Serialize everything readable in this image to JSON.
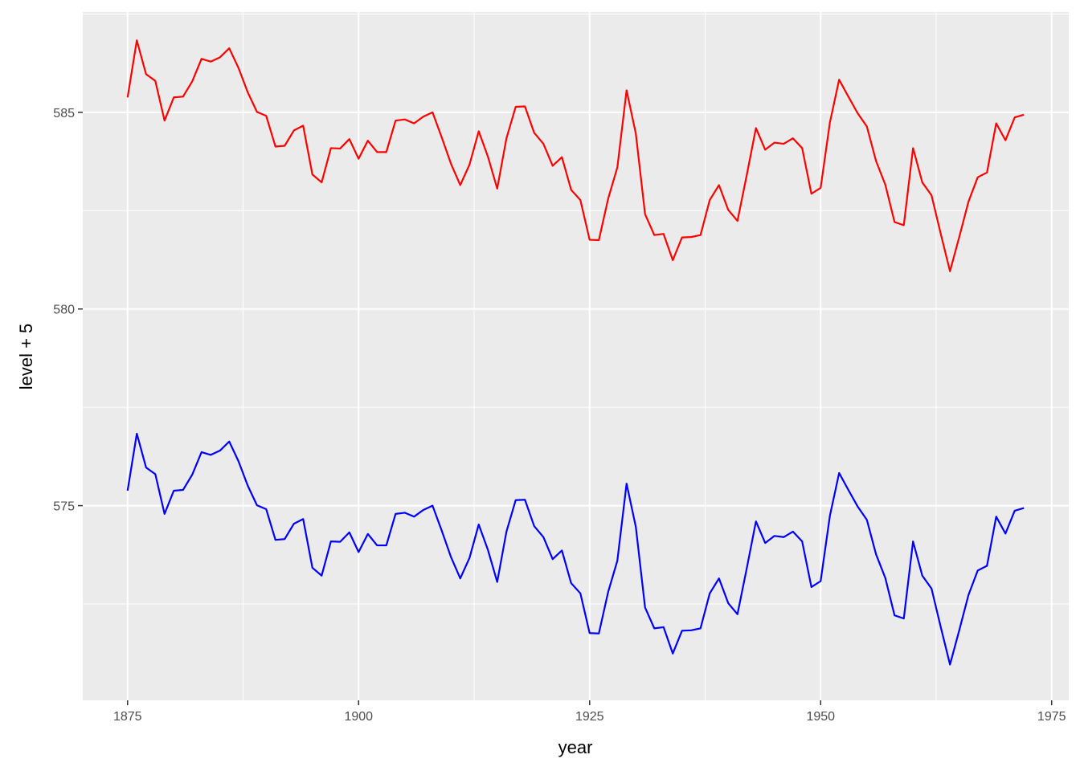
{
  "chart_data": {
    "type": "line",
    "xlabel": "year",
    "ylabel": "level + 5",
    "xlim": [
      1870.15,
      1976.85
    ],
    "ylim": [
      570.05,
      587.55
    ],
    "x_ticks": [
      1875,
      1900,
      1925,
      1950,
      1975
    ],
    "x_tick_labels": [
      "1875",
      "1900",
      "1925",
      "1950",
      "1975"
    ],
    "x_minor_ticks": [
      1887.5,
      1912.5,
      1937.5,
      1962.5
    ],
    "y_ticks": [
      575,
      580,
      585
    ],
    "y_tick_labels": [
      "575",
      "580",
      "585"
    ],
    "y_minor_ticks": [
      572.5,
      577.5,
      582.5,
      587.5
    ],
    "panel_background": "#ebebeb",
    "grid_color": "#ffffff",
    "legend": "none",
    "x": [
      1875,
      1876,
      1877,
      1878,
      1879,
      1880,
      1881,
      1882,
      1883,
      1884,
      1885,
      1886,
      1887,
      1888,
      1889,
      1890,
      1891,
      1892,
      1893,
      1894,
      1895,
      1896,
      1897,
      1898,
      1899,
      1900,
      1901,
      1902,
      1903,
      1904,
      1905,
      1906,
      1907,
      1908,
      1909,
      1910,
      1911,
      1912,
      1913,
      1914,
      1915,
      1916,
      1917,
      1918,
      1919,
      1920,
      1921,
      1922,
      1923,
      1924,
      1925,
      1926,
      1927,
      1928,
      1929,
      1930,
      1931,
      1932,
      1933,
      1934,
      1935,
      1936,
      1937,
      1938,
      1939,
      1940,
      1941,
      1942,
      1943,
      1944,
      1945,
      1946,
      1947,
      1948,
      1949,
      1950,
      1951,
      1952,
      1953,
      1954,
      1955,
      1956,
      1957,
      1958,
      1959,
      1960,
      1961,
      1962,
      1963,
      1964,
      1965,
      1966,
      1967,
      1968,
      1969,
      1970,
      1971,
      1972
    ],
    "series": [
      {
        "color": "#ff0000",
        "values": [
          585.38,
          586.83,
          585.97,
          585.8,
          584.79,
          585.38,
          585.4,
          585.79,
          586.36,
          586.29,
          586.4,
          586.63,
          586.13,
          585.51,
          585.01,
          584.91,
          584.13,
          584.15,
          584.54,
          584.66,
          583.42,
          583.22,
          584.09,
          584.08,
          584.32,
          583.82,
          584.28,
          583.99,
          583.99,
          584.79,
          584.82,
          584.72,
          584.89,
          585.0,
          584.36,
          583.69,
          583.15,
          583.67,
          584.52,
          583.87,
          583.06,
          584.34,
          585.14,
          585.15,
          584.48,
          584.2,
          583.64,
          583.86,
          583.03,
          582.77,
          581.76,
          581.75,
          582.8,
          583.6,
          585.56,
          584.46,
          582.41,
          581.88,
          581.91,
          581.24,
          581.82,
          581.83,
          581.88,
          582.77,
          583.15,
          582.52,
          582.24,
          583.4,
          584.6,
          584.05,
          584.23,
          584.2,
          584.34,
          584.09,
          582.93,
          583.08,
          584.74,
          585.83,
          585.4,
          584.98,
          584.64,
          583.76,
          583.16,
          582.21,
          582.13,
          584.09,
          583.22,
          582.89,
          581.91,
          580.96,
          581.83,
          582.73,
          583.35,
          583.47,
          584.72,
          584.29,
          584.87,
          584.94
        ]
      },
      {
        "color": "#0000ff",
        "values": [
          575.38,
          576.83,
          575.97,
          575.8,
          574.79,
          575.38,
          575.4,
          575.79,
          576.36,
          576.29,
          576.4,
          576.63,
          576.13,
          575.51,
          575.01,
          574.91,
          574.13,
          574.15,
          574.54,
          574.66,
          573.42,
          573.22,
          574.09,
          574.08,
          574.32,
          573.82,
          574.28,
          573.99,
          573.99,
          574.79,
          574.82,
          574.72,
          574.89,
          575.0,
          574.36,
          573.69,
          573.15,
          573.67,
          574.52,
          573.87,
          573.06,
          574.34,
          575.14,
          575.15,
          574.48,
          574.2,
          573.64,
          573.86,
          573.03,
          572.77,
          571.76,
          571.75,
          572.8,
          573.6,
          575.56,
          574.46,
          572.41,
          571.88,
          571.91,
          571.24,
          571.82,
          571.83,
          571.88,
          572.77,
          573.15,
          572.52,
          572.24,
          573.4,
          574.6,
          574.05,
          574.23,
          574.2,
          574.34,
          574.09,
          572.93,
          573.08,
          574.74,
          575.83,
          575.4,
          574.98,
          574.64,
          573.76,
          573.16,
          572.21,
          572.13,
          574.09,
          573.22,
          572.89,
          571.91,
          570.96,
          571.83,
          572.73,
          573.35,
          573.47,
          574.72,
          574.29,
          574.87,
          574.94
        ]
      }
    ]
  }
}
